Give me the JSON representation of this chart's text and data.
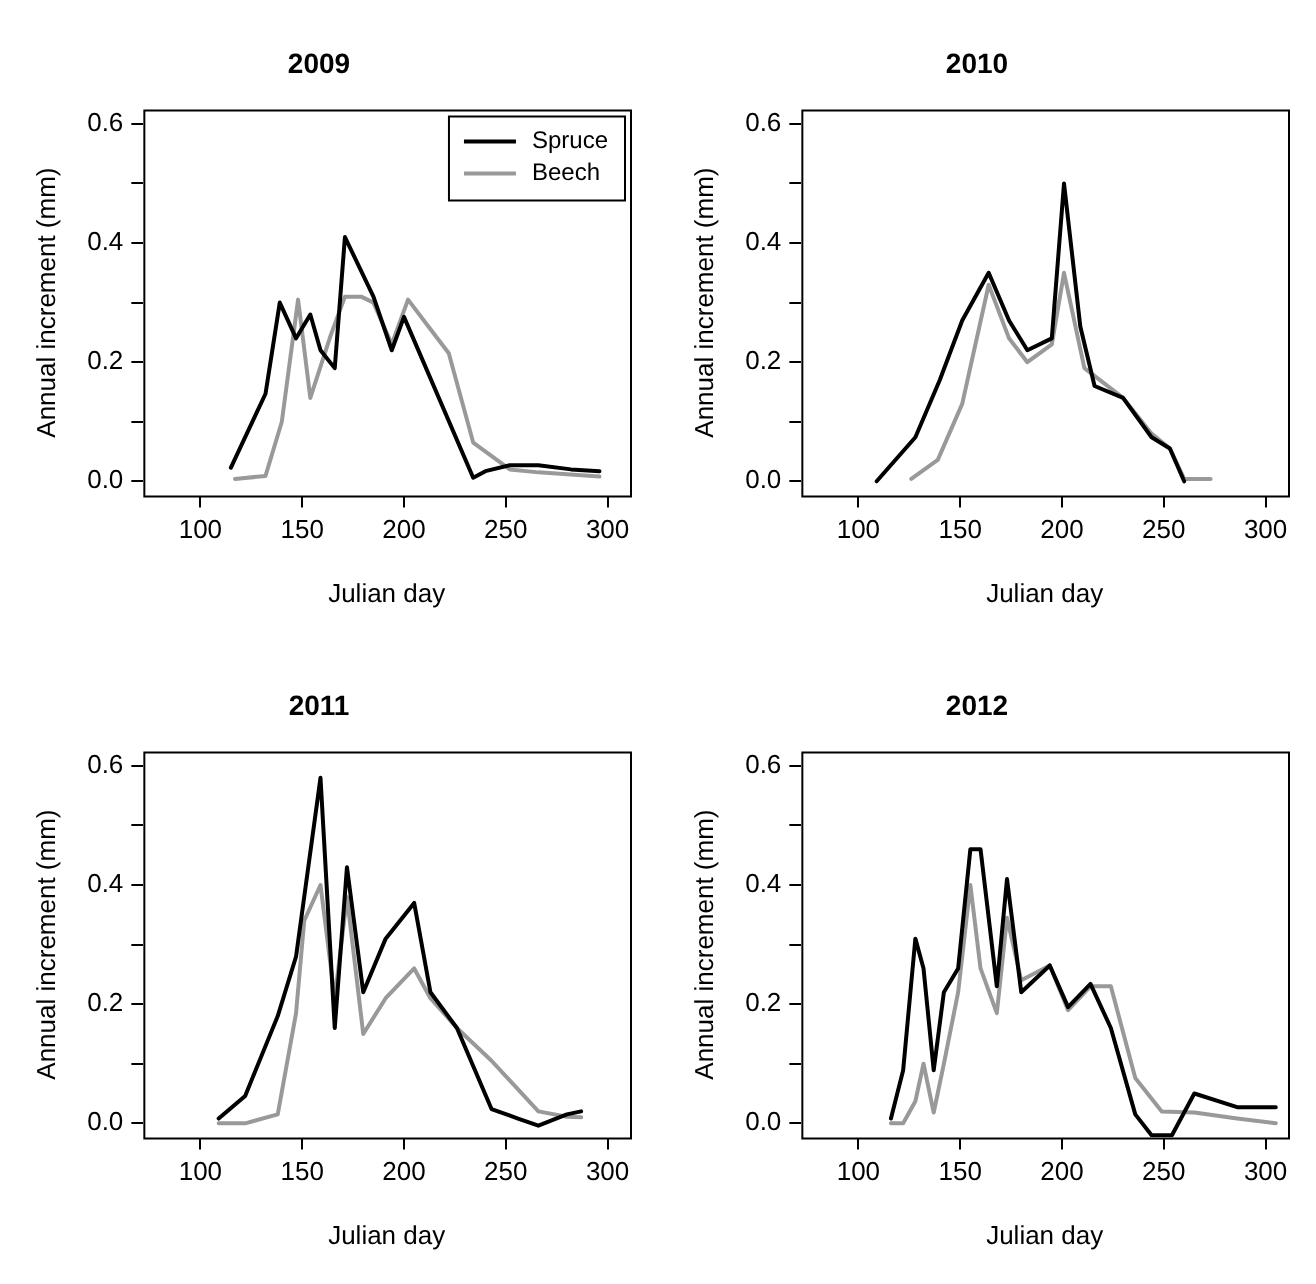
{
  "chart_data": [
    {
      "type": "line",
      "title": "2009",
      "xlabel": "Julian day",
      "ylabel": "Annual increment (mm)",
      "xlim": [
        72,
        311
      ],
      "xticks": [
        100,
        150,
        200,
        250,
        300
      ],
      "ylim": [
        -0.024,
        0.624
      ],
      "yticks": [
        {
          "value": 0,
          "label": "0.0"
        },
        {
          "value": 0.1,
          "label": null
        },
        {
          "value": 0.2,
          "label": "0.2"
        },
        {
          "value": 0.3,
          "label": null
        },
        {
          "value": 0.4,
          "label": "0.4"
        },
        {
          "value": 0.5,
          "label": null
        },
        {
          "value": 0.6,
          "label": "0.6"
        }
      ],
      "grid": false,
      "legend": "top right",
      "marker": "none",
      "line_style": "solid",
      "series": [
        {
          "name": "Spruce",
          "color": "#000000",
          "x": [
            115,
            132,
            139,
            147,
            154,
            159,
            166,
            171,
            185,
            194,
            200,
            234,
            240,
            252,
            266,
            282,
            296
          ],
          "values": [
            0.023,
            0.147,
            0.3,
            0.24,
            0.28,
            0.22,
            0.19,
            0.41,
            0.31,
            0.22,
            0.276,
            0.006,
            0.017,
            0.027,
            0.027,
            0.02,
            0.017
          ]
        },
        {
          "name": "Beech",
          "color": "#999999",
          "x": [
            117,
            132,
            140,
            148,
            154,
            164,
            171,
            179,
            185,
            194,
            202,
            212,
            222,
            234,
            252,
            266,
            296
          ],
          "values": [
            0.004,
            0.009,
            0.1,
            0.305,
            0.14,
            0.245,
            0.31,
            0.31,
            0.3,
            0.23,
            0.305,
            0.26,
            0.215,
            0.065,
            0.02,
            0.015,
            0.008
          ]
        }
      ]
    },
    {
      "type": "line",
      "title": "2010",
      "xlabel": "Julian day",
      "ylabel": "Annual increment (mm)",
      "xlim": [
        72,
        311
      ],
      "xticks": [
        100,
        150,
        200,
        250,
        300
      ],
      "ylim": [
        -0.024,
        0.624
      ],
      "yticks": [
        {
          "value": 0,
          "label": "0.0"
        },
        {
          "value": 0.1,
          "label": null
        },
        {
          "value": 0.2,
          "label": "0.2"
        },
        {
          "value": 0.3,
          "label": null
        },
        {
          "value": 0.4,
          "label": "0.4"
        },
        {
          "value": 0.5,
          "label": null
        },
        {
          "value": 0.6,
          "label": "0.6"
        }
      ],
      "grid": false,
      "marker": "none",
      "line_style": "solid",
      "series": [
        {
          "color": "#000000",
          "x": [
            109,
            128,
            140,
            151,
            164,
            174,
            183,
            195,
            201,
            209,
            216,
            230,
            244,
            253,
            260
          ],
          "values": [
            0,
            0.074,
            0.17,
            0.27,
            0.35,
            0.27,
            0.22,
            0.24,
            0.5,
            0.26,
            0.16,
            0.14,
            0.074,
            0.055,
            0
          ]
        },
        {
          "color": "#999999",
          "x": [
            126,
            139,
            151,
            164,
            174,
            183,
            195,
            201,
            211,
            230,
            244,
            253,
            260,
            273
          ],
          "values": [
            0.004,
            0.036,
            0.13,
            0.33,
            0.24,
            0.2,
            0.23,
            0.35,
            0.19,
            0.14,
            0.08,
            0.055,
            0.004,
            0.004
          ]
        }
      ]
    },
    {
      "type": "line",
      "title": "2011",
      "xlabel": "Julian day",
      "ylabel": "Annual increment (mm)",
      "xlim": [
        72,
        311
      ],
      "xticks": [
        100,
        150,
        200,
        250,
        300
      ],
      "ylim": [
        -0.024,
        0.624
      ],
      "yticks": [
        {
          "value": 0,
          "label": "0.0"
        },
        {
          "value": 0.1,
          "label": null
        },
        {
          "value": 0.2,
          "label": "0.2"
        },
        {
          "value": 0.3,
          "label": null
        },
        {
          "value": 0.4,
          "label": "0.4"
        },
        {
          "value": 0.5,
          "label": null
        },
        {
          "value": 0.6,
          "label": "0.6"
        }
      ],
      "grid": false,
      "marker": "none",
      "line_style": "solid",
      "series": [
        {
          "color": "#000000",
          "x": [
            109,
            122,
            138,
            147,
            159,
            166,
            172,
            180,
            191,
            205,
            213,
            226,
            243,
            256,
            266,
            280,
            287
          ],
          "values": [
            0.008,
            0.046,
            0.18,
            0.28,
            0.58,
            0.16,
            0.43,
            0.22,
            0.31,
            0.37,
            0.22,
            0.16,
            0.024,
            0.008,
            -0.004,
            0.015,
            0.02
          ]
        },
        {
          "color": "#999999",
          "x": [
            109,
            122,
            138,
            147,
            151,
            159,
            166,
            172,
            180,
            191,
            205,
            213,
            226,
            243,
            266,
            280,
            287
          ],
          "values": [
            0,
            0,
            0.015,
            0.185,
            0.34,
            0.4,
            0.21,
            0.38,
            0.15,
            0.21,
            0.26,
            0.21,
            0.16,
            0.105,
            0.02,
            0.011,
            0.01
          ]
        }
      ]
    },
    {
      "type": "line",
      "title": "2012",
      "xlabel": "Julian day",
      "ylabel": "Annual increment (mm)",
      "xlim": [
        72,
        311
      ],
      "xticks": [
        100,
        150,
        200,
        250,
        300
      ],
      "ylim": [
        -0.024,
        0.624
      ],
      "yticks": [
        {
          "value": 0,
          "label": "0.0"
        },
        {
          "value": 0.1,
          "label": null
        },
        {
          "value": 0.2,
          "label": "0.2"
        },
        {
          "value": 0.3,
          "label": null
        },
        {
          "value": 0.4,
          "label": "0.4"
        },
        {
          "value": 0.5,
          "label": null
        },
        {
          "value": 0.6,
          "label": "0.6"
        }
      ],
      "grid": false,
      "marker": "none",
      "line_style": "solid",
      "series": [
        {
          "color": "#000000",
          "x": [
            116,
            122,
            128,
            132,
            137,
            142,
            149,
            155,
            160,
            168,
            173,
            180,
            194,
            203,
            214,
            224,
            236,
            244,
            254,
            265,
            286,
            305
          ],
          "values": [
            0.008,
            0.089,
            0.31,
            0.26,
            0.089,
            0.22,
            0.26,
            0.46,
            0.46,
            0.23,
            0.41,
            0.22,
            0.265,
            0.195,
            0.234,
            0.16,
            0.015,
            -0.02,
            -0.02,
            0.05,
            0.027,
            0.027
          ]
        },
        {
          "color": "#999999",
          "x": [
            116,
            122,
            128,
            132,
            137,
            142,
            149,
            155,
            160,
            168,
            173,
            180,
            194,
            203,
            214,
            224,
            236,
            249,
            265,
            286,
            305
          ],
          "values": [
            0,
            0,
            0.037,
            0.1,
            0.018,
            0.1,
            0.22,
            0.4,
            0.26,
            0.185,
            0.345,
            0.24,
            0.265,
            0.19,
            0.23,
            0.23,
            0.076,
            0.02,
            0.018,
            0.008,
            0
          ]
        }
      ]
    }
  ]
}
